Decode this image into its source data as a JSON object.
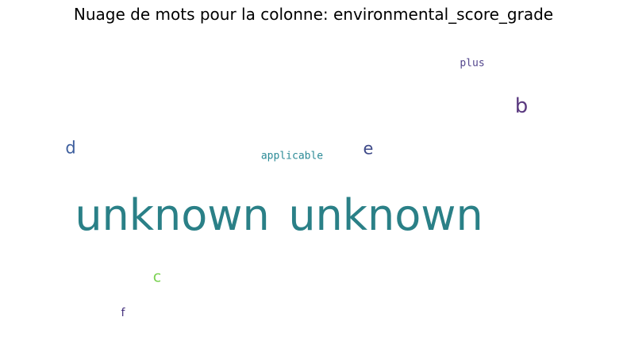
{
  "chart_data": {
    "type": "wordcloud",
    "title": "Nuage de mots pour la colonne: environmental_score_grade",
    "words": [
      {
        "text": "unknown",
        "color": "#2a8087"
      },
      {
        "text": "unknown",
        "color": "#2a8087"
      },
      {
        "text": "b",
        "color": "#5b3a80"
      },
      {
        "text": "d",
        "color": "#3e5f9e"
      },
      {
        "text": "e",
        "color": "#3e4a89"
      },
      {
        "text": "c",
        "color": "#7ad151"
      },
      {
        "text": "f",
        "color": "#46327e"
      },
      {
        "text": "applicable",
        "color": "#2a8a96"
      },
      {
        "text": "plus",
        "color": "#52458c"
      }
    ]
  }
}
